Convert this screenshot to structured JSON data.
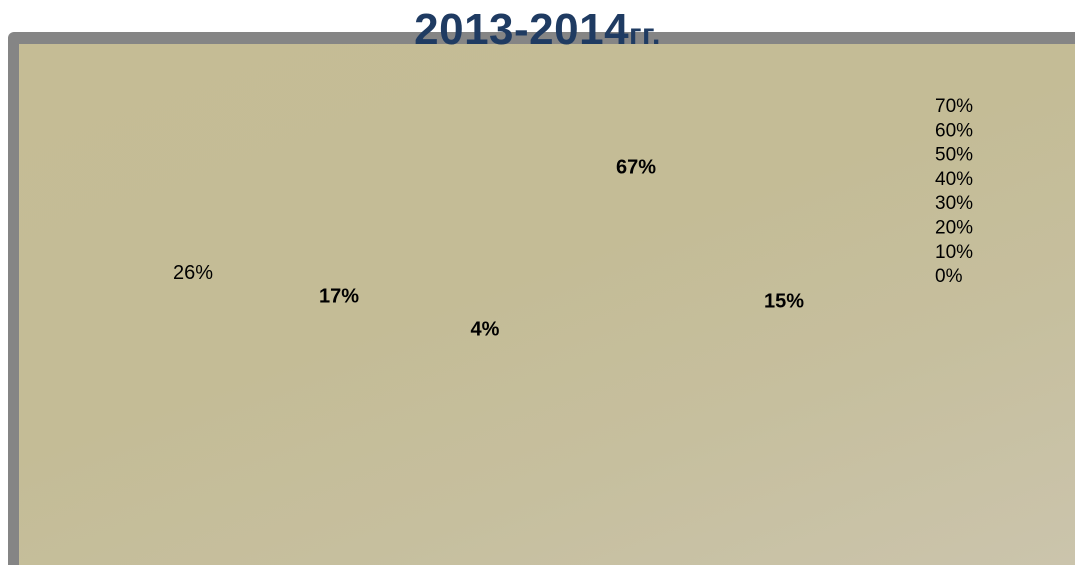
{
  "chart_data": {
    "type": "bar",
    "title": "2013-2014",
    "title_suffix": "гг.",
    "categories": [
      "",
      "",
      "",
      "",
      ""
    ],
    "values": [
      26,
      17,
      4,
      67,
      15
    ],
    "data_labels": [
      "26%",
      "17%",
      "4%",
      "67%",
      "15%"
    ],
    "bold_labels": [
      false,
      true,
      true,
      true,
      true
    ],
    "y_ticks": [
      "70%",
      "60%",
      "50%",
      "40%",
      "30%",
      "20%",
      "10%",
      "0%"
    ],
    "ylim": [
      0,
      70
    ],
    "grid": false
  }
}
